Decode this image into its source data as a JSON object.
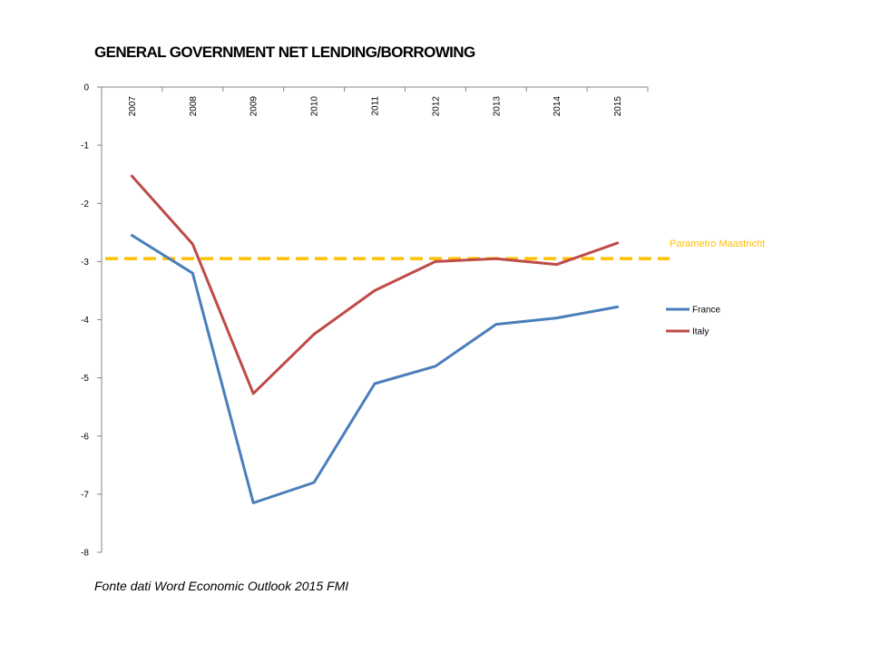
{
  "chart_data": {
    "type": "line",
    "title": "GENERAL GOVERNMENT NET LENDING/BORROWING",
    "x": [
      "2007",
      "2008",
      "2009",
      "2010",
      "2011",
      "2012",
      "2013",
      "2014",
      "2015"
    ],
    "y_ticks": [
      0,
      -1,
      -2,
      -3,
      -4,
      -5,
      -6,
      -7,
      -8
    ],
    "ylim": [
      -8,
      0
    ],
    "series": [
      {
        "name": "France",
        "color": "#4A7EBB",
        "values": [
          -2.55,
          -3.2,
          -7.15,
          -6.8,
          -5.1,
          -4.8,
          -4.08,
          -3.97,
          -3.78
        ]
      },
      {
        "name": "Italy",
        "color": "#BE4B48",
        "values": [
          -1.53,
          -2.7,
          -5.27,
          -4.25,
          -3.5,
          -3.0,
          -2.95,
          -3.05,
          -2.68
        ]
      }
    ],
    "reference_line": {
      "label": "Parametro Maastricht",
      "value": -2.95,
      "color": "#FFC000"
    },
    "legend_position": "right",
    "grid": false
  },
  "source_note": "Fonte dati Word Economic Outlook 2015 FMI"
}
